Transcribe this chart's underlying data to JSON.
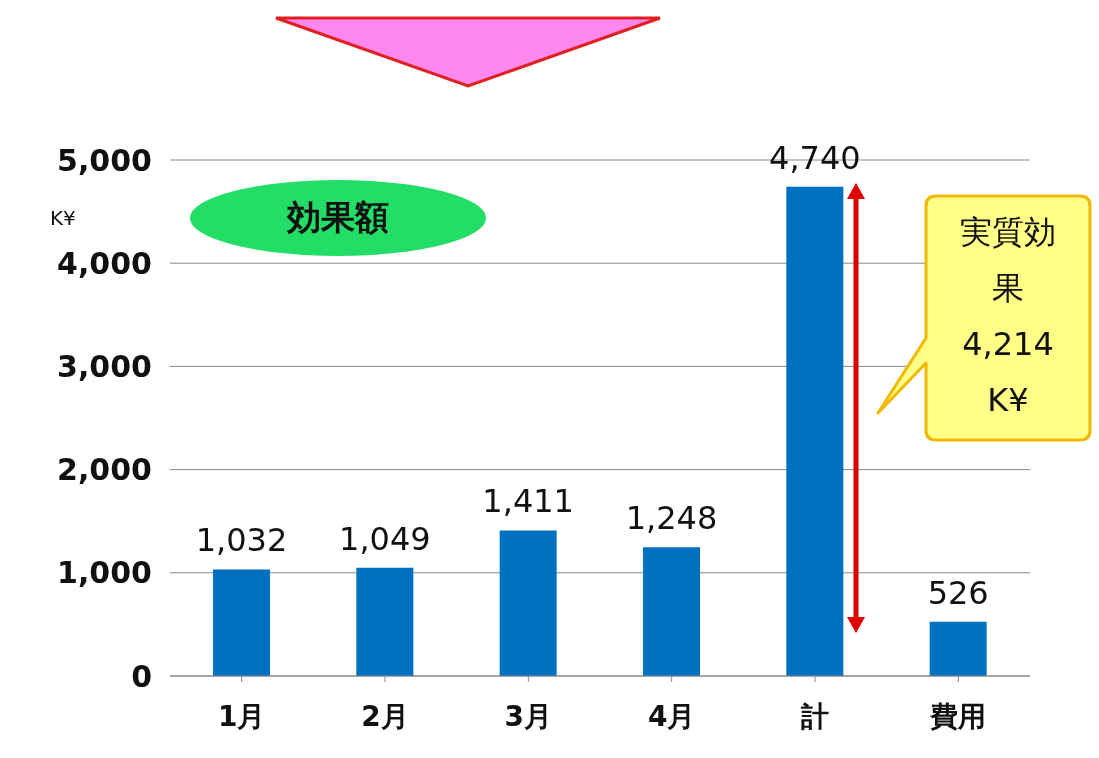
{
  "chart_data": {
    "type": "bar",
    "title": "効果額",
    "ylabel": "K¥",
    "categories": [
      "1月",
      "2月",
      "3月",
      "4月",
      "計",
      "費用"
    ],
    "values": [
      1032,
      1049,
      1411,
      1248,
      4740,
      526
    ],
    "value_labels": [
      "1,032",
      "1,049",
      "1,411",
      "1,248",
      "4,740",
      "526"
    ],
    "color": "#0070c0",
    "ylim": [
      0,
      5000
    ],
    "yticks": [
      0,
      {
        "value": 1000,
        "label": "1,000"
      },
      {
        "value": 2000,
        "label": "2,000"
      },
      {
        "value": 3000,
        "label": "3,000"
      },
      {
        "value": 4000,
        "label": "4,000"
      },
      {
        "value": 5000,
        "label": "5,000"
      }
    ],
    "grid": "y",
    "annotations": [
      "実質効果\n4,214\nK¥"
    ]
  }
}
